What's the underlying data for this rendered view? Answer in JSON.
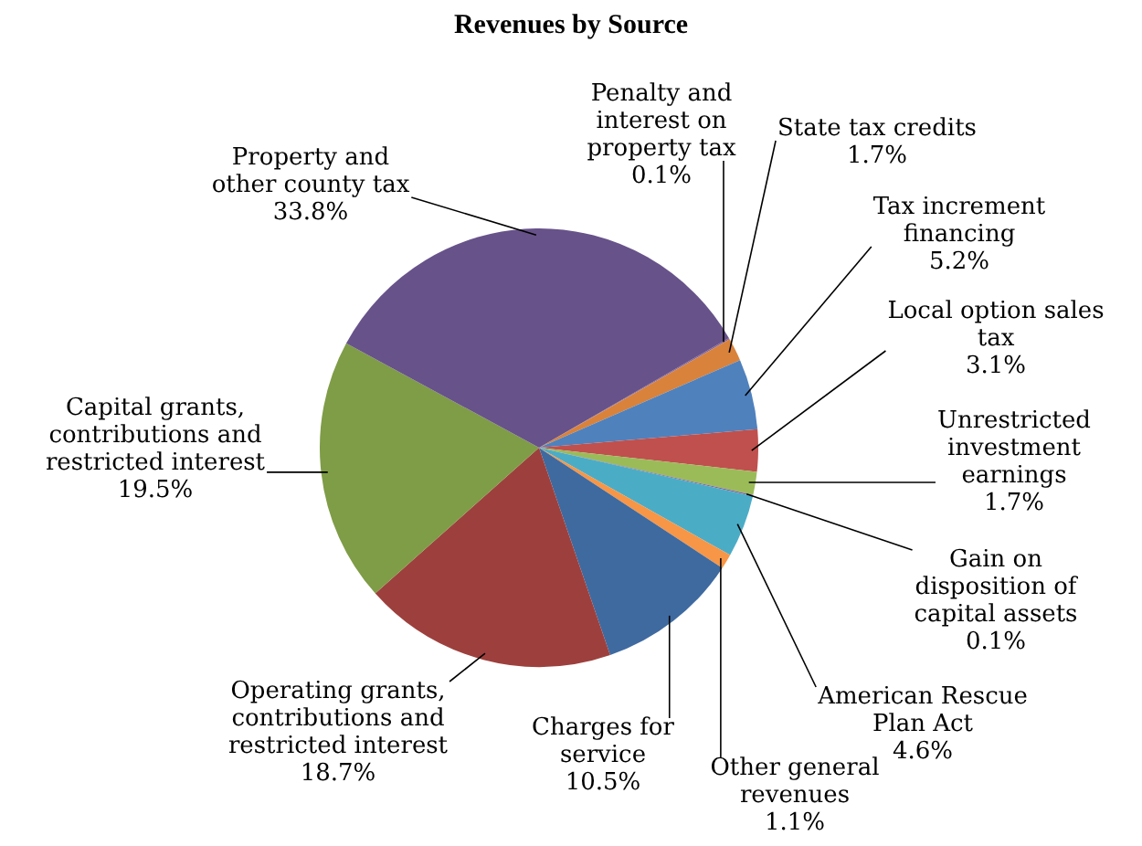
{
  "chart_data": {
    "type": "pie",
    "title": "Revenues by Source",
    "categories": [
      "Penalty and interest on property tax",
      "State tax credits",
      "Tax increment financing",
      "Local option sales tax",
      "Unrestricted investment earnings",
      "Gain on disposition of capital assets",
      "American Rescue Plan Act",
      "Other general revenues",
      "Charges for service",
      "Operating grants, contributions and restricted interest",
      "Capital grants, contributions and restricted interest",
      "Property and other county tax"
    ],
    "values": [
      0.1,
      1.7,
      5.2,
      3.1,
      1.7,
      0.1,
      4.6,
      1.1,
      10.5,
      18.7,
      19.5,
      33.8
    ],
    "colors": [
      "#8064a2",
      "#d9823b",
      "#4f81bd",
      "#c0504d",
      "#9bbb59",
      "#8064a2",
      "#4bacc6",
      "#f79646",
      "#3e6aa0",
      "#9d403d",
      "#7f9c47",
      "#67528a"
    ],
    "value_labels": [
      "0.1%",
      "1.7%",
      "5.2%",
      "3.1%",
      "1.7%",
      "0.1%",
      "4.6%",
      "1.1%",
      "10.5%",
      "18.7%",
      "19.5%",
      "33.8%"
    ],
    "legend": false
  }
}
